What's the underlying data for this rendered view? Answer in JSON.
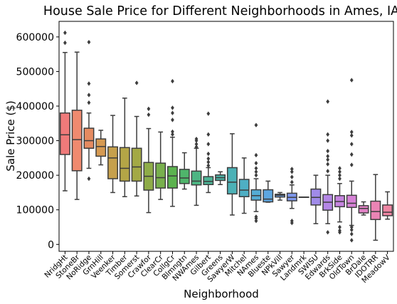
{
  "chart_data": {
    "type": "box",
    "title": "House Sale Price for Different Neighborhoods in Ames, IA",
    "xlabel": "Neighborhood",
    "ylabel": "Sale Price ($)",
    "ylim": [
      -20000,
      645000
    ],
    "yticks": [
      0,
      100000,
      200000,
      300000,
      400000,
      500000,
      600000
    ],
    "ytick_labels": [
      "0",
      "100000",
      "200000",
      "300000",
      "400000",
      "500000",
      "600000"
    ],
    "grid": false,
    "categories": [
      "NridgHt",
      "StoneBr",
      "NoRidge",
      "GrnHill",
      "Veenker",
      "Timber",
      "Somerst",
      "Crawfor",
      "ClearCr",
      "CollgCr",
      "Blmngtn",
      "NWAmes",
      "Gilbert",
      "Greens",
      "SawyerW",
      "Mitchel",
      "NAmes",
      "Blueste",
      "NPkVill",
      "Sawyer",
      "Landmrk",
      "SWISU",
      "Edwards",
      "BrkSide",
      "OldTown",
      "BrDale",
      "IDOTRR",
      "MeadowV"
    ],
    "boxes": [
      {
        "q1": 260000,
        "median": 317000,
        "q3": 380000,
        "whislo": 155000,
        "whishi": 555000,
        "fliers": [
          583000,
          612000
        ],
        "color": "#f07a7a"
      },
      {
        "q1": 213000,
        "median": 303000,
        "q3": 388000,
        "whislo": 130000,
        "whishi": 556000,
        "fliers": [],
        "color": "#f08a6f"
      },
      {
        "q1": 278000,
        "median": 300000,
        "q3": 336000,
        "whislo": 220000,
        "whishi": 380000,
        "fliers": [
          190000,
          410000,
          432000,
          465000,
          585000
        ],
        "color": "#e58b61"
      },
      {
        "q1": 255000,
        "median": 283000,
        "q3": 305000,
        "whislo": 230000,
        "whishi": 330000,
        "fliers": [],
        "color": "#d69a52"
      },
      {
        "q1": 190000,
        "median": 250000,
        "q3": 282000,
        "whislo": 150000,
        "whishi": 373000,
        "fliers": [],
        "color": "#c6a04c"
      },
      {
        "q1": 183000,
        "median": 220000,
        "q3": 280000,
        "whislo": 138000,
        "whishi": 423000,
        "fliers": [],
        "color": "#b4a546"
      },
      {
        "q1": 183000,
        "median": 224000,
        "q3": 278000,
        "whislo": 140000,
        "whishi": 370000,
        "fliers": [
          467000
        ],
        "color": "#a3a945"
      },
      {
        "q1": 157000,
        "median": 197000,
        "q3": 237000,
        "whislo": 92000,
        "whishi": 335000,
        "fliers": [
          375000,
          392000
        ],
        "color": "#8fac48"
      },
      {
        "q1": 163000,
        "median": 193000,
        "q3": 235000,
        "whislo": 130000,
        "whishi": 325000,
        "fliers": [],
        "color": "#78b04d"
      },
      {
        "q1": 163000,
        "median": 198000,
        "q3": 225000,
        "whislo": 110000,
        "whishi": 310000,
        "fliers": [
          318000,
          326000,
          360000,
          380000,
          395000,
          472000
        ],
        "color": "#5cb34f"
      },
      {
        "q1": 176000,
        "median": 192000,
        "q3": 217000,
        "whislo": 160000,
        "whishi": 265000,
        "fliers": [],
        "color": "#4fb56b"
      },
      {
        "q1": 172000,
        "median": 183000,
        "q3": 212000,
        "whislo": 113000,
        "whishi": 278000,
        "fliers": [
          282000,
          290000,
          300000,
          305000
        ],
        "color": "#4db583"
      },
      {
        "q1": 173000,
        "median": 182000,
        "q3": 196000,
        "whislo": 150000,
        "whishi": 222000,
        "fliers": [
          228000,
          238000,
          248000,
          262000,
          290000,
          318000,
          378000
        ],
        "color": "#4cb496"
      },
      {
        "q1": 185000,
        "median": 193000,
        "q3": 201000,
        "whislo": 173000,
        "whishi": 210000,
        "fliers": [],
        "color": "#4cb3a6"
      },
      {
        "q1": 146000,
        "median": 180000,
        "q3": 222000,
        "whislo": 85000,
        "whishi": 320000,
        "fliers": [],
        "color": "#4cb1b6"
      },
      {
        "q1": 138000,
        "median": 157000,
        "q3": 188000,
        "whislo": 90000,
        "whishi": 250000,
        "fliers": [],
        "color": "#4eafc4"
      },
      {
        "q1": 128000,
        "median": 141000,
        "q3": 158000,
        "whislo": 95000,
        "whishi": 190000,
        "fliers": [
          68000,
          75000,
          80000,
          200000,
          210000,
          220000,
          235000,
          258000,
          345000
        ],
        "color": "#54abd3"
      },
      {
        "q1": 123000,
        "median": 131000,
        "q3": 158000,
        "whislo": 122000,
        "whishi": 183000,
        "fliers": [],
        "color": "#5da6e0"
      },
      {
        "q1": 137000,
        "median": 142000,
        "q3": 145000,
        "whislo": 128000,
        "whishi": 150000,
        "fliers": [],
        "color": "#6c9fe8"
      },
      {
        "q1": 126000,
        "median": 136000,
        "q3": 148000,
        "whislo": 104000,
        "whishi": 172000,
        "fliers": [
          62000,
          68000,
          180000,
          195000,
          210000,
          218000
        ],
        "color": "#7e97ec"
      },
      {
        "q1": 137000,
        "median": 137000,
        "q3": 137000,
        "whislo": 137000,
        "whishi": 137000,
        "fliers": [],
        "color": "#8f90ec"
      },
      {
        "q1": 114000,
        "median": 136000,
        "q3": 160000,
        "whislo": 60000,
        "whishi": 200000,
        "fliers": [],
        "color": "#a08be9"
      },
      {
        "q1": 99000,
        "median": 122000,
        "q3": 144000,
        "whislo": 60000,
        "whishi": 200000,
        "fliers": [
          35000,
          212000,
          232000,
          245000,
          255000,
          270000,
          300000,
          318000,
          413000
        ],
        "color": "#b486e6"
      },
      {
        "q1": 109000,
        "median": 124000,
        "q3": 141000,
        "whislo": 65000,
        "whishi": 176000,
        "fliers": [
          35000,
          40000,
          50000,
          190000,
          200000,
          210000,
          220000
        ],
        "color": "#c684e0"
      },
      {
        "q1": 107000,
        "median": 119000,
        "q3": 142000,
        "whislo": 55000,
        "whishi": 183000,
        "fliers": [
          12000,
          30000,
          42000,
          50000,
          230000,
          260000,
          290000,
          315000,
          325000,
          475000
        ],
        "color": "#d682d6"
      },
      {
        "q1": 91000,
        "median": 104000,
        "q3": 112000,
        "whislo": 85000,
        "whishi": 123000,
        "fliers": [],
        "color": "#e283c6"
      },
      {
        "q1": 72000,
        "median": 95000,
        "q3": 125000,
        "whislo": 12000,
        "whishi": 202000,
        "fliers": [],
        "color": "#eb84b5"
      },
      {
        "q1": 83000,
        "median": 93000,
        "q3": 114000,
        "whislo": 73000,
        "whishi": 152000,
        "fliers": [],
        "color": "#ef86a3"
      }
    ]
  }
}
